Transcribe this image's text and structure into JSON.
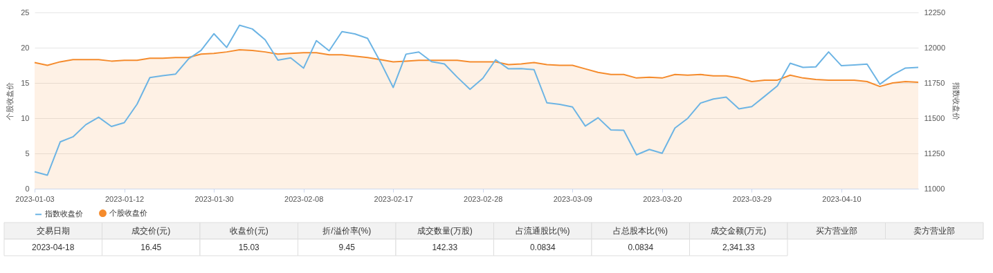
{
  "chart_data": [
    {
      "type": "line",
      "ylabel": "个股收盘价",
      "y2label": "指数收盘价",
      "legend": "bottom",
      "grid": true,
      "categories": [
        "2023-01-03",
        null,
        null,
        null,
        null,
        null,
        null,
        "2023-01-12",
        null,
        null,
        null,
        null,
        null,
        null,
        "2023-01-30",
        null,
        null,
        null,
        null,
        null,
        null,
        "2023-02-08",
        null,
        null,
        null,
        null,
        null,
        null,
        "2023-02-17",
        null,
        null,
        null,
        null,
        null,
        null,
        "2023-02-28",
        null,
        null,
        null,
        null,
        null,
        null,
        "2023-03-09",
        null,
        null,
        null,
        null,
        null,
        null,
        "2023-03-20",
        null,
        null,
        null,
        null,
        null,
        null,
        "2023-03-29",
        null,
        null,
        null,
        null,
        null,
        null,
        "2023-04-10",
        null,
        null,
        null,
        null,
        null,
        null
      ],
      "ylim": [
        0,
        25
      ],
      "yticks": [
        0,
        5,
        10,
        15,
        20,
        25
      ],
      "y2lim": [
        11000,
        12250
      ],
      "y2ticks": [
        11000,
        11250,
        11500,
        11750,
        12000,
        12250
      ],
      "series": [
        {
          "name": "指数收盘价",
          "type": "line",
          "axis": "y2",
          "color": "#6cb4e4",
          "values": [
            11120,
            11096,
            11332,
            11368,
            11454,
            11507,
            11441,
            11468,
            11599,
            11788,
            11801,
            11812,
            11919,
            11981,
            12099,
            12002,
            12159,
            12133,
            12056,
            11912,
            11928,
            11855,
            12050,
            11978,
            12114,
            12098,
            12066,
            11900,
            11718,
            11954,
            11969,
            11901,
            11885,
            11791,
            11705,
            11783,
            11914,
            11850,
            11852,
            11844,
            11609,
            11598,
            11580,
            11444,
            11503,
            11417,
            11414,
            11240,
            11278,
            11251,
            11430,
            11499,
            11607,
            11636,
            11649,
            11566,
            11582,
            11655,
            11729,
            11890,
            11860,
            11864,
            11970,
            11872,
            11877,
            11884,
            11741,
            11807,
            11856,
            11860
          ]
        },
        {
          "name": "个股收盘价",
          "type": "area",
          "color": "#f58b2c",
          "values": [
            17.9,
            17.5,
            18.0,
            18.3,
            18.3,
            18.3,
            18.1,
            18.2,
            18.2,
            18.5,
            18.5,
            18.6,
            18.6,
            19.1,
            19.2,
            19.4,
            19.7,
            19.6,
            19.4,
            19.1,
            19.2,
            19.3,
            19.3,
            19.0,
            19.0,
            18.8,
            18.6,
            18.3,
            18.0,
            18.1,
            18.2,
            18.2,
            18.2,
            18.2,
            18.0,
            18.0,
            18.0,
            17.6,
            17.7,
            17.9,
            17.6,
            17.5,
            17.5,
            17.0,
            16.5,
            16.2,
            16.2,
            15.7,
            15.8,
            15.7,
            16.2,
            16.1,
            16.2,
            16.0,
            16.0,
            15.7,
            15.2,
            15.4,
            15.4,
            16.1,
            15.7,
            15.5,
            15.4,
            15.4,
            15.4,
            15.2,
            14.5,
            15.0,
            15.2,
            15.1
          ]
        }
      ]
    },
    {
      "type": "other",
      "categories": [
        "交易日期",
        "成交价(元)",
        "收盘价(元)",
        "折/溢价率(%)",
        "成交数量(万股)",
        "占流通股比(%)",
        "占总股本比(%)",
        "成交金额(万元)",
        "买方营业部",
        "卖方营业部"
      ],
      "annotations": [
        "2023-04-18",
        "16.45",
        "15.03",
        "9.45",
        "142.33",
        "0.0834",
        "0.0834",
        "2,341.33"
      ]
    }
  ]
}
